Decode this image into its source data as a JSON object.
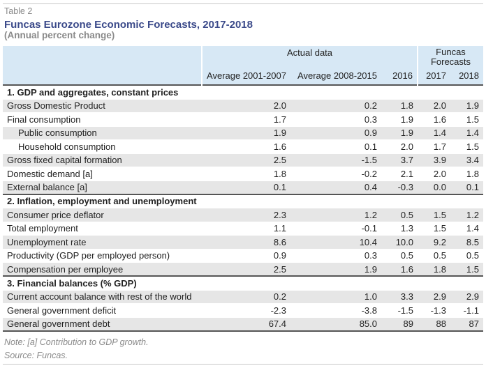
{
  "header": {
    "label": "Table 2",
    "title": "Funcas Eurozone Economic Forecasts, 2017-2018",
    "subtitle": "(Annual percent change)"
  },
  "columns": {
    "group_actual": "Actual data",
    "group_forecast_line1": "Funcas",
    "group_forecast_line2": "Forecasts",
    "avg_2001_2007": "Average 2001-2007",
    "avg_2008_2015": "Average 2008-2015",
    "y2016": "2016",
    "y2017": "2017",
    "y2018": "2018"
  },
  "sections": [
    {
      "title": "1. GDP and aggregates, constant prices",
      "rows": [
        {
          "label": "Gross Domestic Product",
          "values": [
            "2.0",
            "0.2",
            "1.8",
            "2.0",
            "1.9"
          ],
          "shaded": true,
          "indent": false
        },
        {
          "label": "Final consumption",
          "values": [
            "1.7",
            "0.3",
            "1.9",
            "1.6",
            "1.5"
          ],
          "shaded": false,
          "indent": false
        },
        {
          "label": "Public consumption",
          "values": [
            "1.9",
            "0.9",
            "1.9",
            "1.4",
            "1.4"
          ],
          "shaded": true,
          "indent": true
        },
        {
          "label": "Household consumption",
          "values": [
            "1.6",
            "0.1",
            "2.0",
            "1.7",
            "1.5"
          ],
          "shaded": false,
          "indent": true
        },
        {
          "label": "Gross fixed capital formation",
          "values": [
            "2.5",
            "-1.5",
            "3.7",
            "3.9",
            "3.4"
          ],
          "shaded": true,
          "indent": false
        },
        {
          "label": "Domestic demand [a]",
          "values": [
            "1.8",
            "-0.2",
            "2.1",
            "2.0",
            "1.8"
          ],
          "shaded": false,
          "indent": false
        },
        {
          "label": "External balance [a]",
          "values": [
            "0.1",
            "0.4",
            "-0.3",
            "0.0",
            "0.1"
          ],
          "shaded": true,
          "indent": false
        }
      ]
    },
    {
      "title": "2. Inflation, employment and unemployment",
      "rows": [
        {
          "label": "Consumer price deflator",
          "values": [
            "2.3",
            "1.2",
            "0.5",
            "1.5",
            "1.2"
          ],
          "shaded": true,
          "indent": false
        },
        {
          "label": "Total employment",
          "values": [
            "1.1",
            "-0.1",
            "1.3",
            "1.5",
            "1.4"
          ],
          "shaded": false,
          "indent": false
        },
        {
          "label": "Unemployment rate",
          "values": [
            "8.6",
            "10.4",
            "10.0",
            "9.2",
            "8.5"
          ],
          "shaded": true,
          "indent": false
        },
        {
          "label": "Productivity (GDP per employed person)",
          "values": [
            "0.9",
            "0.3",
            "0.5",
            "0.5",
            "0.5"
          ],
          "shaded": false,
          "indent": false
        },
        {
          "label": "Compensation per employee",
          "values": [
            "2.5",
            "1.9",
            "1.6",
            "1.8",
            "1.5"
          ],
          "shaded": true,
          "indent": false
        }
      ]
    },
    {
      "title": "3. Financial balances (% GDP)",
      "rows": [
        {
          "label": "Current account balance with rest of the world",
          "values": [
            "0.2",
            "1.0",
            "3.3",
            "2.9",
            "2.9"
          ],
          "shaded": true,
          "indent": false
        },
        {
          "label": "General government deficit",
          "values": [
            "-2.3",
            "-3.8",
            "-1.5",
            "-1.3",
            "-1.1"
          ],
          "shaded": false,
          "indent": false
        },
        {
          "label": "General government debt",
          "values": [
            "67.4",
            "85.0",
            "89",
            "88",
            "87"
          ],
          "shaded": true,
          "indent": false
        }
      ]
    }
  ],
  "footer": {
    "note": "Note: [a] Contribution to GDP growth.",
    "source": "Source: Funcas."
  }
}
